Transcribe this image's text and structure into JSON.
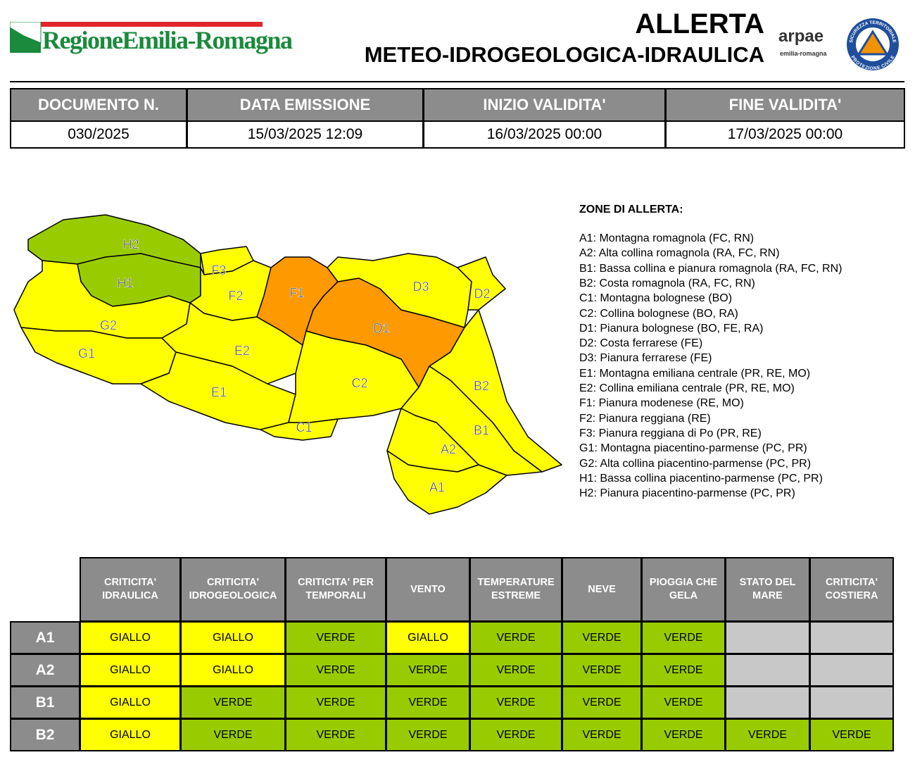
{
  "header": {
    "logo_text": "RegioneEmilia-Romagna",
    "title": "ALLERTA",
    "subtitle": "METEO-IDROGEOLOGICA-IDRAULICA",
    "arpae": "arpae",
    "arpae_sub": "emilia-romagna",
    "pc_top": "SICUREZZA TERRITORIALE",
    "pc_bottom": "PROTEZIONE CIVILE"
  },
  "doc_table": {
    "headers": [
      "DOCUMENTO N.",
      "DATA EMISSIONE",
      "INIZIO VALIDITA'",
      "FINE VALIDITA'"
    ],
    "values": [
      "030/2025",
      "15/03/2025 12:09",
      "16/03/2025 00:00",
      "17/03/2025 00:00"
    ]
  },
  "map": {
    "zones": [
      {
        "label": "H2",
        "color": "#99cc00"
      },
      {
        "label": "H1",
        "color": "#99cc00"
      },
      {
        "label": "G2",
        "color": "#ffff00"
      },
      {
        "label": "G1",
        "color": "#ffff00"
      },
      {
        "label": "F3",
        "color": "#ffff00"
      },
      {
        "label": "F2",
        "color": "#ffff00"
      },
      {
        "label": "E2",
        "color": "#ffff00"
      },
      {
        "label": "E1",
        "color": "#ffff00"
      },
      {
        "label": "F1",
        "color": "#ff9900"
      },
      {
        "label": "D1",
        "color": "#ff9900"
      },
      {
        "label": "D3",
        "color": "#ffff00"
      },
      {
        "label": "D2",
        "color": "#ffff00"
      },
      {
        "label": "C2",
        "color": "#ffff00"
      },
      {
        "label": "C1",
        "color": "#ffff00"
      },
      {
        "label": "B2",
        "color": "#ffff00"
      },
      {
        "label": "B1",
        "color": "#ffff00"
      },
      {
        "label": "A2",
        "color": "#ffff00"
      },
      {
        "label": "A1",
        "color": "#ffff00"
      }
    ]
  },
  "legend": {
    "title": "ZONE DI ALLERTA:",
    "items": [
      "A1: Montagna romagnola (FC, RN)",
      "A2: Alta collina romagnola (RA, FC, RN)",
      "B1: Bassa collina e pianura romagnola (RA, FC, RN)",
      "B2: Costa romagnola (RA, FC, RN)",
      "C1: Montagna bolognese (BO)",
      "C2: Collina bolognese (BO, RA)",
      "D1: Pianura bolognese (BO, FE, RA)",
      "D2: Costa ferrarese (FE)",
      "D3: Pianura ferrarese (FE)",
      "E1: Montagna emiliana centrale (PR, RE, MO)",
      "E2: Collina emiliana centrale (PR, RE, MO)",
      "F1: Pianura modenese (RE, MO)",
      "F2: Pianura reggiana (RE)",
      "F3: Pianura reggiana di Po (PR, RE)",
      "G1: Montagna piacentino-parmense (PC, PR)",
      "G2: Alta collina piacentino-parmense (PC, PR)",
      "H1: Bassa collina piacentino-parmense (PC, PR)",
      "H2: Pianura piacentino-parmense (PC, PR)"
    ]
  },
  "alert_table": {
    "columns": [
      "CRITICITA'\nIDRAULICA",
      "CRITICITA'\nIDROGEOLOGICA",
      "CRITICITA' PER\nTEMPORALI",
      "VENTO",
      "TEMPERATURE\nESTREME",
      "NEVE",
      "PIOGGIA CHE\nGELA",
      "STATO DEL\nMARE",
      "CRITICITA'\nCOSTIERA"
    ],
    "rows": [
      {
        "zone": "A1",
        "cells": [
          "GIALLO",
          "GIALLO",
          "VERDE",
          "GIALLO",
          "VERDE",
          "VERDE",
          "VERDE",
          null,
          null
        ]
      },
      {
        "zone": "A2",
        "cells": [
          "GIALLO",
          "GIALLO",
          "VERDE",
          "VERDE",
          "VERDE",
          "VERDE",
          "VERDE",
          null,
          null
        ]
      },
      {
        "zone": "B1",
        "cells": [
          "GIALLO",
          "VERDE",
          "VERDE",
          "VERDE",
          "VERDE",
          "VERDE",
          "VERDE",
          null,
          null
        ]
      },
      {
        "zone": "B2",
        "cells": [
          "GIALLO",
          "VERDE",
          "VERDE",
          "VERDE",
          "VERDE",
          "VERDE",
          "VERDE",
          "VERDE",
          "VERDE"
        ]
      }
    ],
    "level_colors": {
      "GIALLO": "#ffff00",
      "VERDE": "#99cc00"
    },
    "empty_color": "#c8c8c8"
  }
}
